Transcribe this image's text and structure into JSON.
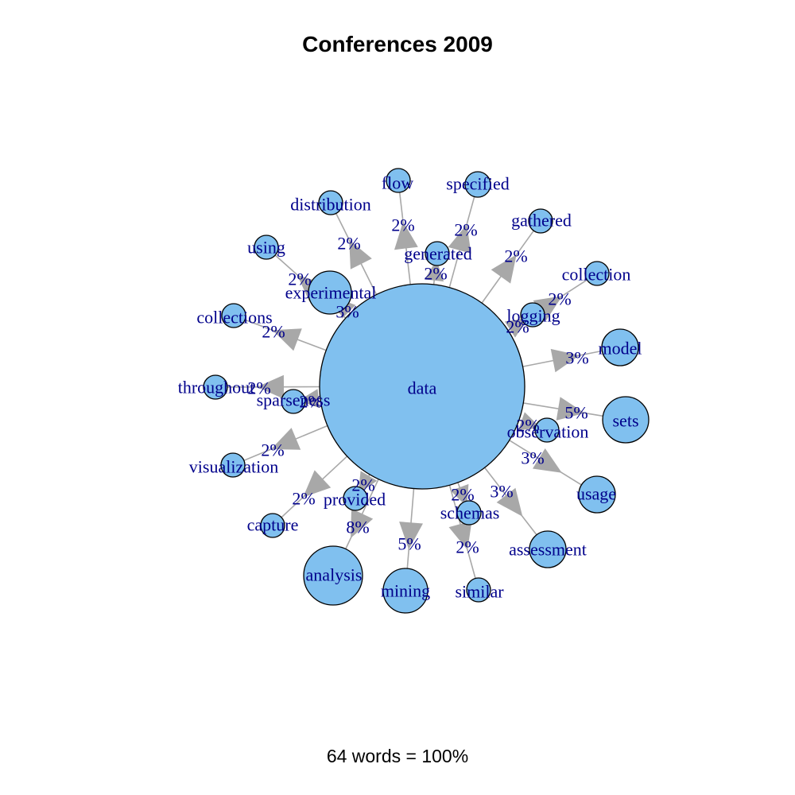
{
  "title": "Conferences 2009",
  "footer": "64 words = 100%",
  "colors": {
    "node_fill": "#80c0ef",
    "node_stroke": "#000000",
    "edge": "#a8a8a8",
    "label": "#00008b"
  },
  "center": {
    "word": "data"
  },
  "edges": [
    {
      "word": "flow",
      "weight": "2%"
    },
    {
      "word": "specified",
      "weight": "2%"
    },
    {
      "word": "gathered",
      "weight": "2%"
    },
    {
      "word": "collection",
      "weight": "2%"
    },
    {
      "word": "model",
      "weight": "3%"
    },
    {
      "word": "sets",
      "weight": "5%"
    },
    {
      "word": "usage",
      "weight": "3%"
    },
    {
      "word": "assessment",
      "weight": "3%"
    },
    {
      "word": "similar",
      "weight": "2%"
    },
    {
      "word": "mining",
      "weight": "5%"
    },
    {
      "word": "analysis",
      "weight": "8%"
    },
    {
      "word": "capture",
      "weight": "2%"
    },
    {
      "word": "visualization",
      "weight": "2%"
    },
    {
      "word": "throughout",
      "weight": "2%"
    },
    {
      "word": "collections",
      "weight": "2%"
    },
    {
      "word": "using",
      "weight": "2%"
    },
    {
      "word": "distribution",
      "weight": "2%"
    },
    {
      "word": "generated",
      "weight": "2%"
    },
    {
      "word": "logging",
      "weight": "2%"
    },
    {
      "word": "observation",
      "weight": "2%"
    },
    {
      "word": "schemas",
      "weight": "2%"
    },
    {
      "word": "provided",
      "weight": "2%"
    },
    {
      "word": "sparseness",
      "weight": "2%"
    },
    {
      "word": "experimental",
      "weight": "3%"
    }
  ]
}
